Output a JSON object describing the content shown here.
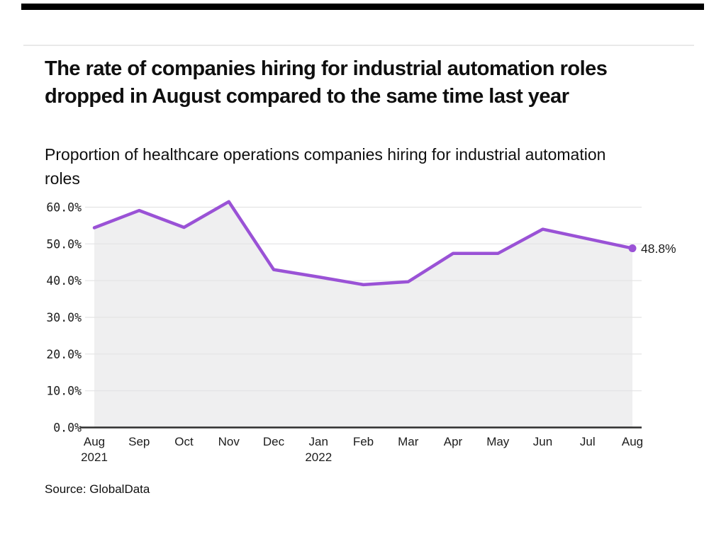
{
  "page": {
    "title": "The rate of companies hiring for industrial automation roles dropped in August compared to the same time last year",
    "subtitle": "Proportion of healthcare operations companies hiring for industrial automation roles",
    "source": "Source: GlobalData"
  },
  "chart_data": {
    "type": "line",
    "title": "Proportion of healthcare operations companies hiring for industrial automation roles",
    "x": [
      "Aug 2021",
      "Sep",
      "Oct",
      "Nov",
      "Dec",
      "Jan 2022",
      "Feb",
      "Mar",
      "Apr",
      "May",
      "Jun",
      "Jul",
      "Aug"
    ],
    "values": [
      54.4,
      59.1,
      54.5,
      61.5,
      43.0,
      41.0,
      38.9,
      39.7,
      47.4,
      47.4,
      54.0,
      51.4,
      48.8
    ],
    "end_label": "48.8%",
    "y_ticks": [
      "0.0%",
      "10.0%",
      "20.0%",
      "30.0%",
      "40.0%",
      "50.0%",
      "60.0%"
    ],
    "ylim": [
      0,
      60
    ],
    "grid": true,
    "legend": "none",
    "xlabel": "",
    "ylabel": ""
  },
  "style": {
    "top_bar_color": "#000000",
    "line_color": "#9a52d6",
    "area_color": "#efeff0",
    "grid_color": "#e3e3e4",
    "axis_color": "#2e2e2e",
    "tick_text_color": "#1c1c1c"
  }
}
